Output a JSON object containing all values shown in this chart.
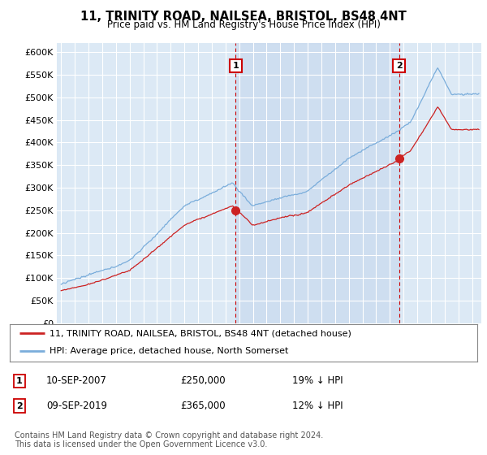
{
  "title": "11, TRINITY ROAD, NAILSEA, BRISTOL, BS48 4NT",
  "subtitle": "Price paid vs. HM Land Registry's House Price Index (HPI)",
  "legend_line1": "11, TRINITY ROAD, NAILSEA, BRISTOL, BS48 4NT (detached house)",
  "legend_line2": "HPI: Average price, detached house, North Somerset",
  "annotation1": {
    "label": "1",
    "date": "10-SEP-2007",
    "price": "£250,000",
    "pct": "19% ↓ HPI"
  },
  "annotation2": {
    "label": "2",
    "date": "09-SEP-2019",
    "price": "£365,000",
    "pct": "12% ↓ HPI"
  },
  "footer": "Contains HM Land Registry data © Crown copyright and database right 2024.\nThis data is licensed under the Open Government Licence v3.0.",
  "hpi_color": "#7aaddb",
  "price_color": "#cc2222",
  "plot_bg_color": "#dce9f5",
  "grid_color": "#ffffff",
  "annotation_color": "#cc0000",
  "shade_color": "#c5d8ee",
  "ylim": [
    0,
    620000
  ],
  "yticks": [
    0,
    50000,
    100000,
    150000,
    200000,
    250000,
    300000,
    350000,
    400000,
    450000,
    500000,
    550000,
    600000
  ],
  "t1": 2007.75,
  "t2": 2019.67,
  "p1": 250000,
  "p2": 365000,
  "xmin": 1994.7,
  "xmax": 2025.7
}
